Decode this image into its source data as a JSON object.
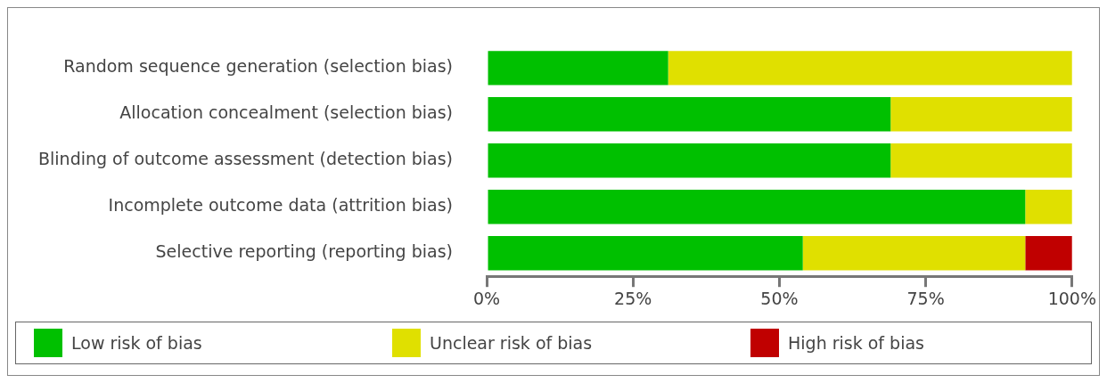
{
  "chart_data": {
    "type": "bar",
    "orientation": "horizontal",
    "stacked": true,
    "categories": [
      "Random sequence generation (selection bias)",
      "Allocation concealment (selection bias)",
      "Blinding of outcome assessment (detection bias)",
      "Incomplete outcome data (attrition bias)",
      "Selective reporting (reporting bias)"
    ],
    "series": [
      {
        "name": "Low risk of bias",
        "color": "#00c000",
        "values": [
          31,
          69,
          69,
          92,
          54
        ]
      },
      {
        "name": "Unclear risk of bias",
        "color": "#e0e000",
        "values": [
          69,
          31,
          31,
          8,
          38
        ]
      },
      {
        "name": "High risk of bias",
        "color": "#c00000",
        "values": [
          0,
          0,
          0,
          0,
          8
        ]
      }
    ],
    "xlim": [
      0,
      100
    ],
    "xticks": [
      {
        "value": 0,
        "label": "0%"
      },
      {
        "value": 25,
        "label": "25%"
      },
      {
        "value": 50,
        "label": "50%"
      },
      {
        "value": 75,
        "label": "75%"
      },
      {
        "value": 100,
        "label": "100%"
      }
    ],
    "grid": false,
    "legend": "bottom"
  }
}
